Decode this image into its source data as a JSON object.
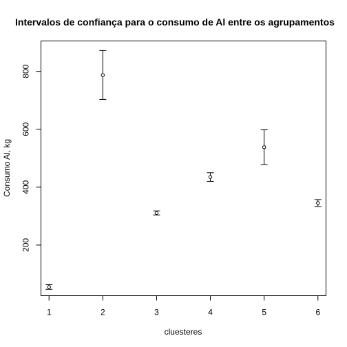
{
  "chart_data": {
    "type": "scatter",
    "title": "Intervalos de confiança para o consumo de Al entre os agrupamentos",
    "xlabel": "cluesteres",
    "ylabel": "Consumo Al, kg",
    "xlim": [
      0.85,
      6.15
    ],
    "ylim": [
      25,
      905
    ],
    "x_ticks": [
      1,
      2,
      3,
      4,
      5,
      6
    ],
    "y_ticks": [
      200,
      400,
      600,
      800
    ],
    "grid": false,
    "points": [
      {
        "x": 1,
        "mean": 55,
        "lower": 47,
        "upper": 63
      },
      {
        "x": 2,
        "mean": 787,
        "lower": 703,
        "upper": 872
      },
      {
        "x": 3,
        "mean": 311,
        "lower": 304,
        "upper": 318
      },
      {
        "x": 4,
        "mean": 435,
        "lower": 420,
        "upper": 450
      },
      {
        "x": 5,
        "mean": 538,
        "lower": 478,
        "upper": 598
      },
      {
        "x": 6,
        "mean": 345,
        "lower": 333,
        "upper": 357
      }
    ],
    "colors": {
      "marks": "#000000",
      "background": "#ffffff"
    }
  }
}
